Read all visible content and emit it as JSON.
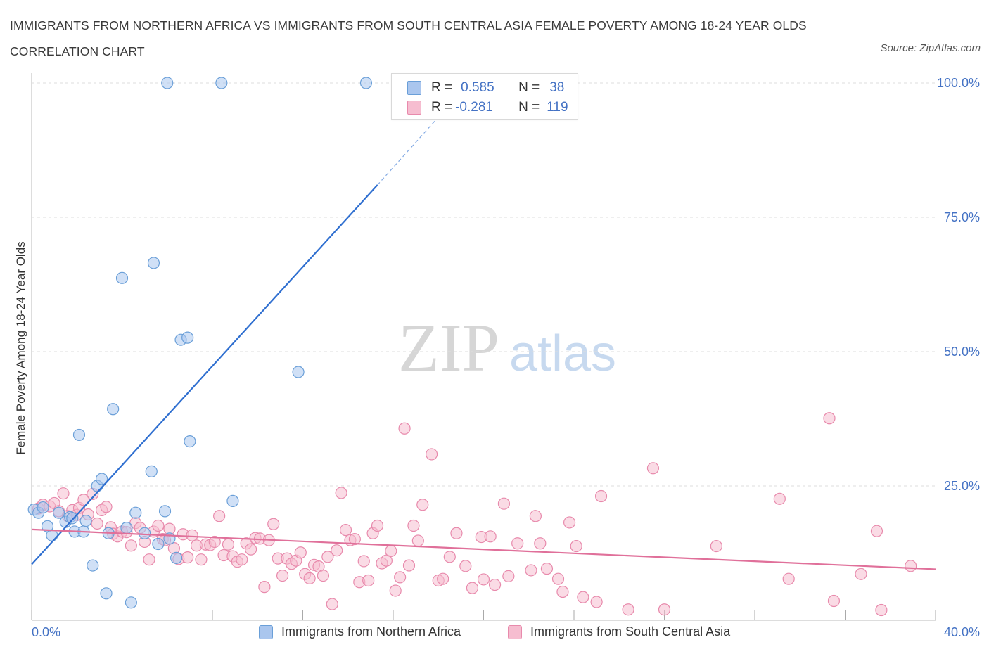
{
  "title": "IMMIGRANTS FROM NORTHERN AFRICA VS IMMIGRANTS FROM SOUTH CENTRAL ASIA FEMALE POVERTY AMONG 18-24 YEAR OLDS CORRELATION CHART",
  "source": "Source: ZipAtlas.com",
  "watermark": {
    "zip": "ZIP",
    "atlas": "atlas"
  },
  "legend": {
    "rows": [
      {
        "r_label": "R =",
        "r_value": "0.585",
        "n_label": "N =",
        "n_value": "38"
      },
      {
        "r_label": "R =",
        "r_value": "-0.281",
        "n_label": "N =",
        "n_value": "119"
      }
    ]
  },
  "colors": {
    "blue_fill": "#aac6ee",
    "blue_stroke": "#6a9fd8",
    "blue_line": "#2f6fd0",
    "pink_fill": "#f6bdd0",
    "pink_stroke": "#e88aac",
    "pink_line": "#e0709a",
    "axis_text": "#4472c4",
    "grid": "#dddddd"
  },
  "chart_data": {
    "type": "scatter",
    "title": "IMMIGRANTS FROM NORTHERN AFRICA VS IMMIGRANTS FROM SOUTH CENTRAL ASIA FEMALE POVERTY AMONG 18-24 YEAR OLDS CORRELATION CHART",
    "xlabel": "",
    "ylabel": "Female Poverty Among 18-24 Year Olds",
    "xlim": [
      0,
      40
    ],
    "ylim": [
      0,
      100
    ],
    "x_tick_labels": [
      "0.0%",
      "40.0%"
    ],
    "y_ticks": [
      25,
      50,
      75,
      100
    ],
    "y_tick_labels": [
      "25.0%",
      "50.0%",
      "75.0%",
      "100.0%"
    ],
    "grid": true,
    "legend_position": "bottom",
    "series": [
      {
        "name": "Immigrants from Northern Africa",
        "color": "#aac6ee",
        "R": 0.585,
        "N": 38,
        "trend": {
          "x0": 0,
          "y0": 10.4,
          "x1": 15.3,
          "y1": 81.0,
          "dashed_to_x": 18.5,
          "dashed_to_y": 96.0
        },
        "points": [
          [
            0.1,
            20.6
          ],
          [
            0.3,
            20.0
          ],
          [
            0.7,
            17.5
          ],
          [
            0.9,
            15.8
          ],
          [
            1.2,
            20.0
          ],
          [
            1.5,
            18.3
          ],
          [
            1.7,
            19.2
          ],
          [
            1.9,
            16.5
          ],
          [
            2.1,
            34.5
          ],
          [
            2.3,
            16.5
          ],
          [
            2.4,
            18.5
          ],
          [
            2.7,
            10.2
          ],
          [
            2.9,
            25.0
          ],
          [
            3.1,
            26.3
          ],
          [
            3.3,
            5.0
          ],
          [
            3.4,
            16.2
          ],
          [
            3.6,
            39.3
          ],
          [
            4.0,
            63.7
          ],
          [
            4.2,
            17.2
          ],
          [
            4.4,
            3.3
          ],
          [
            4.6,
            20.0
          ],
          [
            5.0,
            16.2
          ],
          [
            5.3,
            27.7
          ],
          [
            5.4,
            66.5
          ],
          [
            5.6,
            14.2
          ],
          [
            5.9,
            20.3
          ],
          [
            6.0,
            100.0
          ],
          [
            6.1,
            15.2
          ],
          [
            6.4,
            11.6
          ],
          [
            6.6,
            52.2
          ],
          [
            6.9,
            52.6
          ],
          [
            7.0,
            33.3
          ],
          [
            8.4,
            100.0
          ],
          [
            8.9,
            22.2
          ],
          [
            11.8,
            46.2
          ],
          [
            14.8,
            100.0
          ],
          [
            1.8,
            19.0
          ],
          [
            0.5,
            21.0
          ]
        ]
      },
      {
        "name": "Immigrants from South Central Asia",
        "color": "#f6bdd0",
        "R": -0.281,
        "N": 119,
        "trend": {
          "x0": 0,
          "y0": 16.9,
          "x1": 40,
          "y1": 9.5
        },
        "points": [
          [
            0.3,
            20.8
          ],
          [
            0.5,
            21.5
          ],
          [
            0.8,
            21.2
          ],
          [
            1.0,
            21.8
          ],
          [
            1.2,
            20.3
          ],
          [
            1.4,
            23.6
          ],
          [
            1.6,
            19.4
          ],
          [
            1.8,
            20.5
          ],
          [
            2.0,
            19.6
          ],
          [
            2.1,
            20.9
          ],
          [
            2.3,
            22.4
          ],
          [
            2.5,
            19.7
          ],
          [
            2.7,
            23.5
          ],
          [
            2.9,
            18.0
          ],
          [
            3.1,
            20.5
          ],
          [
            3.3,
            21.1
          ],
          [
            3.5,
            17.3
          ],
          [
            3.6,
            16.1
          ],
          [
            3.8,
            15.6
          ],
          [
            4.0,
            16.5
          ],
          [
            4.2,
            16.4
          ],
          [
            4.4,
            13.9
          ],
          [
            4.6,
            18.1
          ],
          [
            4.8,
            17.2
          ],
          [
            5.0,
            14.6
          ],
          [
            5.2,
            11.3
          ],
          [
            5.4,
            16.5
          ],
          [
            5.6,
            17.6
          ],
          [
            5.8,
            15.1
          ],
          [
            5.9,
            14.9
          ],
          [
            6.1,
            17.0
          ],
          [
            6.3,
            13.4
          ],
          [
            6.5,
            11.4
          ],
          [
            6.7,
            16.0
          ],
          [
            6.9,
            11.7
          ],
          [
            7.1,
            15.8
          ],
          [
            7.3,
            13.9
          ],
          [
            7.5,
            11.3
          ],
          [
            7.7,
            14.1
          ],
          [
            7.9,
            14.0
          ],
          [
            8.1,
            14.6
          ],
          [
            8.3,
            19.4
          ],
          [
            8.5,
            12.1
          ],
          [
            8.7,
            14.1
          ],
          [
            8.9,
            11.9
          ],
          [
            9.1,
            10.9
          ],
          [
            9.3,
            11.3
          ],
          [
            9.5,
            14.3
          ],
          [
            9.7,
            13.2
          ],
          [
            9.9,
            15.3
          ],
          [
            10.1,
            15.2
          ],
          [
            10.3,
            6.2
          ],
          [
            10.5,
            14.9
          ],
          [
            10.7,
            17.9
          ],
          [
            10.9,
            11.5
          ],
          [
            11.1,
            8.3
          ],
          [
            11.3,
            11.5
          ],
          [
            11.5,
            10.5
          ],
          [
            11.7,
            11.1
          ],
          [
            11.9,
            12.6
          ],
          [
            12.1,
            8.6
          ],
          [
            12.3,
            7.8
          ],
          [
            12.5,
            10.3
          ],
          [
            12.7,
            10.0
          ],
          [
            12.9,
            8.3
          ],
          [
            13.1,
            11.8
          ],
          [
            13.3,
            3.0
          ],
          [
            13.5,
            13.0
          ],
          [
            13.7,
            23.7
          ],
          [
            13.9,
            16.8
          ],
          [
            14.1,
            14.9
          ],
          [
            14.3,
            15.1
          ],
          [
            14.5,
            7.1
          ],
          [
            14.7,
            11.0
          ],
          [
            14.9,
            7.4
          ],
          [
            15.1,
            16.2
          ],
          [
            15.3,
            17.6
          ],
          [
            15.5,
            10.6
          ],
          [
            15.7,
            11.1
          ],
          [
            15.9,
            12.9
          ],
          [
            16.1,
            5.5
          ],
          [
            16.3,
            8.0
          ],
          [
            16.5,
            35.7
          ],
          [
            16.7,
            10.2
          ],
          [
            16.9,
            17.6
          ],
          [
            17.1,
            14.8
          ],
          [
            17.3,
            21.5
          ],
          [
            17.7,
            30.9
          ],
          [
            18.0,
            7.4
          ],
          [
            18.2,
            7.7
          ],
          [
            18.5,
            11.8
          ],
          [
            18.8,
            16.2
          ],
          [
            19.2,
            10.1
          ],
          [
            19.5,
            6.0
          ],
          [
            19.9,
            15.5
          ],
          [
            20.0,
            7.6
          ],
          [
            20.3,
            15.6
          ],
          [
            20.5,
            6.6
          ],
          [
            20.9,
            21.7
          ],
          [
            21.1,
            8.2
          ],
          [
            21.5,
            14.3
          ],
          [
            22.1,
            9.3
          ],
          [
            22.3,
            19.4
          ],
          [
            22.5,
            14.3
          ],
          [
            22.8,
            9.6
          ],
          [
            23.3,
            7.7
          ],
          [
            23.5,
            5.3
          ],
          [
            23.8,
            18.2
          ],
          [
            24.1,
            13.8
          ],
          [
            24.4,
            4.3
          ],
          [
            25.0,
            3.4
          ],
          [
            25.2,
            23.1
          ],
          [
            26.4,
            2.0
          ],
          [
            27.5,
            28.3
          ],
          [
            28.0,
            2.0
          ],
          [
            30.3,
            13.8
          ],
          [
            33.1,
            22.6
          ],
          [
            33.5,
            7.7
          ],
          [
            35.3,
            37.6
          ],
          [
            35.5,
            3.6
          ],
          [
            36.7,
            8.6
          ],
          [
            37.4,
            16.6
          ],
          [
            37.6,
            1.9
          ],
          [
            38.9,
            10.1
          ]
        ]
      }
    ]
  }
}
